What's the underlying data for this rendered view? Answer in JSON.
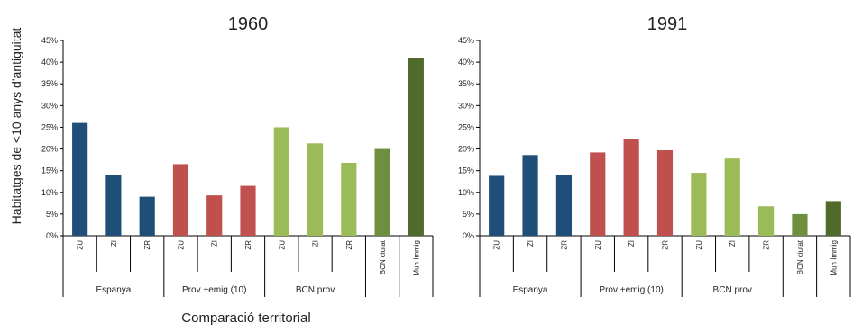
{
  "ylabel": "Habitatges de <10 anys d'antiguitat",
  "xlabel": "Comparació territorial",
  "colors": {
    "spain": "#1f4e79",
    "prov": "#c0504d",
    "bcnprov": "#9bbb59",
    "ciutat": "#6e8f3f",
    "immig": "#4f6a2b",
    "axis": "#000000",
    "text": "#222222"
  },
  "chart_data": [
    {
      "type": "bar",
      "title": "1960",
      "ylim": [
        0,
        45
      ],
      "yticks": [
        "0%",
        "5%",
        "10%",
        "15%",
        "20%",
        "25%",
        "30%",
        "35%",
        "40%",
        "45%"
      ],
      "categories": [
        "ZU",
        "ZI",
        "ZR",
        "ZU",
        "ZI",
        "ZR",
        "ZU",
        "ZI",
        "ZR",
        "BCN ciutat",
        "Mun Immig"
      ],
      "values": [
        26,
        14,
        9,
        16.5,
        9.3,
        11.5,
        25,
        21.3,
        16.8,
        20,
        41
      ],
      "colors": [
        "#1f4e79",
        "#1f4e79",
        "#1f4e79",
        "#c0504d",
        "#c0504d",
        "#c0504d",
        "#9bbb59",
        "#9bbb59",
        "#9bbb59",
        "#6e8f3f",
        "#4f6a2b"
      ],
      "groups": [
        {
          "label": "Espanya",
          "start": 0,
          "end": 2
        },
        {
          "label": "Prov +emig (10)",
          "start": 3,
          "end": 5
        },
        {
          "label": "BCN prov",
          "start": 6,
          "end": 8
        },
        {
          "label": "",
          "start": 9,
          "end": 9
        },
        {
          "label": "",
          "start": 10,
          "end": 10
        }
      ]
    },
    {
      "type": "bar",
      "title": "1991",
      "ylim": [
        0,
        45
      ],
      "yticks": [
        "0%",
        "5%",
        "10%",
        "15%",
        "20%",
        "25%",
        "30%",
        "35%",
        "40%",
        "45%"
      ],
      "categories": [
        "ZU",
        "ZI",
        "ZR",
        "ZU",
        "ZI",
        "ZR",
        "ZU",
        "ZI",
        "ZR",
        "BCN ciutat",
        "Mun Immig"
      ],
      "values": [
        13.8,
        18.6,
        14,
        19.2,
        22.2,
        19.7,
        14.5,
        17.8,
        6.8,
        5,
        8
      ],
      "colors": [
        "#1f4e79",
        "#1f4e79",
        "#1f4e79",
        "#c0504d",
        "#c0504d",
        "#c0504d",
        "#9bbb59",
        "#9bbb59",
        "#9bbb59",
        "#6e8f3f",
        "#4f6a2b"
      ],
      "groups": [
        {
          "label": "Espanya",
          "start": 0,
          "end": 2
        },
        {
          "label": "Prov +emig (10)",
          "start": 3,
          "end": 5
        },
        {
          "label": "BCN prov",
          "start": 6,
          "end": 8
        },
        {
          "label": "",
          "start": 9,
          "end": 9
        },
        {
          "label": "",
          "start": 10,
          "end": 10
        }
      ]
    }
  ]
}
